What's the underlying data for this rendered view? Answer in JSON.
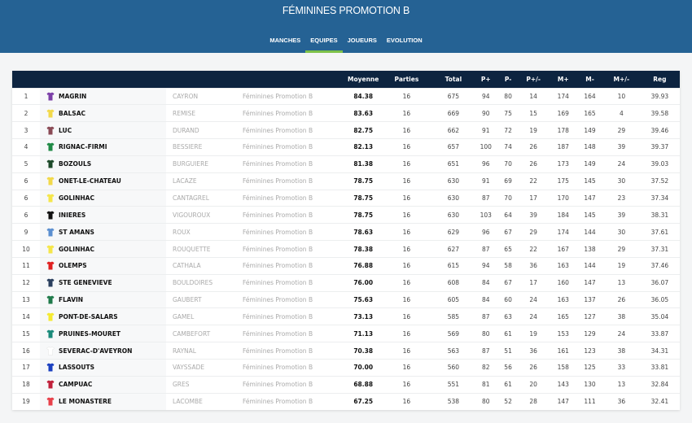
{
  "header": {
    "title": "FÉMININES PROMOTION B"
  },
  "nav": [
    {
      "label": "MANCHES",
      "active": false
    },
    {
      "label": "EQUIPES",
      "active": true
    },
    {
      "label": "JOUEURS",
      "active": false
    },
    {
      "label": "EVOLUTION",
      "active": false
    }
  ],
  "colors": {
    "header_bg": "#256294",
    "table_header_bg": "#0d2440",
    "nav_active_underline": "#7ec24a"
  },
  "table": {
    "columns": [
      "",
      "",
      "",
      "",
      "Moyenne",
      "Parties",
      "Total",
      "P+",
      "P-",
      "P+/-",
      "M+",
      "M-",
      "M+/-",
      "Reg"
    ],
    "rows": [
      {
        "rank": "1",
        "jersey": "#7b3fa8",
        "team": "MAGRIN",
        "player": "CAYRON",
        "division": "Féminines Promotion B",
        "moyenne": "84.38",
        "parties": "16",
        "total": "675",
        "p_plus": "94",
        "p_minus": "80",
        "p_diff": "14",
        "m_plus": "174",
        "m_minus": "164",
        "m_diff": "10",
        "reg": "39.93"
      },
      {
        "rank": "2",
        "jersey": "#f2d94a",
        "team": "BALSAC",
        "player": "REMISE",
        "division": "Féminines Promotion B",
        "moyenne": "83.63",
        "parties": "16",
        "total": "669",
        "p_plus": "90",
        "p_minus": "75",
        "p_diff": "15",
        "m_plus": "169",
        "m_minus": "165",
        "m_diff": "4",
        "reg": "39.58"
      },
      {
        "rank": "3",
        "jersey": "#8a4a55",
        "team": "LUC",
        "player": "DURAND",
        "division": "Féminines Promotion B",
        "moyenne": "82.75",
        "parties": "16",
        "total": "662",
        "p_plus": "91",
        "p_minus": "72",
        "p_diff": "19",
        "m_plus": "178",
        "m_minus": "149",
        "m_diff": "29",
        "reg": "39.46"
      },
      {
        "rank": "4",
        "jersey": "#1f8a45",
        "team": "RIGNAC-FIRMI",
        "player": "BESSIERE",
        "division": "Féminines Promotion B",
        "moyenne": "82.13",
        "parties": "16",
        "total": "657",
        "p_plus": "100",
        "p_minus": "74",
        "p_diff": "26",
        "m_plus": "187",
        "m_minus": "148",
        "m_diff": "39",
        "reg": "39.37"
      },
      {
        "rank": "5",
        "jersey": "#1d4a2a",
        "team": "BOZOULS",
        "player": "BURGUIERE",
        "division": "Féminines Promotion B",
        "moyenne": "81.38",
        "parties": "16",
        "total": "651",
        "p_plus": "96",
        "p_minus": "70",
        "p_diff": "26",
        "m_plus": "173",
        "m_minus": "149",
        "m_diff": "24",
        "reg": "39.03"
      },
      {
        "rank": "6",
        "jersey": "#f2d94a",
        "team": "ONET-LE-CHATEAU",
        "player": "LACAZE",
        "division": "Féminines Promotion B",
        "moyenne": "78.75",
        "parties": "16",
        "total": "630",
        "p_plus": "91",
        "p_minus": "69",
        "p_diff": "22",
        "m_plus": "175",
        "m_minus": "145",
        "m_diff": "30",
        "reg": "37.52"
      },
      {
        "rank": "6",
        "jersey": "#f5e64a",
        "team": "GOLINHAC",
        "player": "CANTAGREL",
        "division": "Féminines Promotion B",
        "moyenne": "78.75",
        "parties": "16",
        "total": "630",
        "p_plus": "87",
        "p_minus": "70",
        "p_diff": "17",
        "m_plus": "170",
        "m_minus": "147",
        "m_diff": "23",
        "reg": "37.34"
      },
      {
        "rank": "6",
        "jersey": "#111111",
        "team": "INIERES",
        "player": "VIGOUROUX",
        "division": "Féminines Promotion B",
        "moyenne": "78.75",
        "parties": "16",
        "total": "630",
        "p_plus": "103",
        "p_minus": "64",
        "p_diff": "39",
        "m_plus": "184",
        "m_minus": "145",
        "m_diff": "39",
        "reg": "38.31"
      },
      {
        "rank": "9",
        "jersey": "#5b8fd0",
        "team": "ST AMANS",
        "player": "ROUX",
        "division": "Féminines Promotion B",
        "moyenne": "78.63",
        "parties": "16",
        "total": "629",
        "p_plus": "96",
        "p_minus": "67",
        "p_diff": "29",
        "m_plus": "174",
        "m_minus": "144",
        "m_diff": "30",
        "reg": "37.61"
      },
      {
        "rank": "10",
        "jersey": "#f5e64a",
        "team": "GOLINHAC",
        "player": "ROUQUETTE",
        "division": "Féminines Promotion B",
        "moyenne": "78.38",
        "parties": "16",
        "total": "627",
        "p_plus": "87",
        "p_minus": "65",
        "p_diff": "22",
        "m_plus": "167",
        "m_minus": "138",
        "m_diff": "29",
        "reg": "37.31"
      },
      {
        "rank": "11",
        "jersey": "#e02020",
        "team": "OLEMPS",
        "player": "CATHALA",
        "division": "Féminines Promotion B",
        "moyenne": "76.88",
        "parties": "16",
        "total": "615",
        "p_plus": "94",
        "p_minus": "58",
        "p_diff": "36",
        "m_plus": "163",
        "m_minus": "144",
        "m_diff": "19",
        "reg": "37.46"
      },
      {
        "rank": "12",
        "jersey": "#2a3f5e",
        "team": "STE GENEVIEVE",
        "player": "BOULDOIRES",
        "division": "Féminines Promotion B",
        "moyenne": "76.00",
        "parties": "16",
        "total": "608",
        "p_plus": "84",
        "p_minus": "67",
        "p_diff": "17",
        "m_plus": "160",
        "m_minus": "147",
        "m_diff": "13",
        "reg": "36.07"
      },
      {
        "rank": "13",
        "jersey": "#1f7a4a",
        "team": "FLAVIN",
        "player": "GAUBERT",
        "division": "Féminines Promotion B",
        "moyenne": "75.63",
        "parties": "16",
        "total": "605",
        "p_plus": "84",
        "p_minus": "60",
        "p_diff": "24",
        "m_plus": "163",
        "m_minus": "137",
        "m_diff": "26",
        "reg": "36.05"
      },
      {
        "rank": "14",
        "jersey": "#f5ea30",
        "team": "PONT-DE-SALARS",
        "player": "GAMEL",
        "division": "Féminines Promotion B",
        "moyenne": "73.13",
        "parties": "16",
        "total": "585",
        "p_plus": "87",
        "p_minus": "63",
        "p_diff": "24",
        "m_plus": "165",
        "m_minus": "127",
        "m_diff": "38",
        "reg": "35.04"
      },
      {
        "rank": "15",
        "jersey": "#1a8a7a",
        "team": "PRUINES-MOURET",
        "player": "CAMBEFORT",
        "division": "Féminines Promotion B",
        "moyenne": "71.13",
        "parties": "16",
        "total": "569",
        "p_plus": "80",
        "p_minus": "61",
        "p_diff": "19",
        "m_plus": "153",
        "m_minus": "129",
        "m_diff": "24",
        "reg": "33.87"
      },
      {
        "rank": "16",
        "jersey": "#ffffff",
        "team": "SEVERAC-D'AVEYRON",
        "player": "RAYNAL",
        "division": "Féminines Promotion B",
        "moyenne": "70.38",
        "parties": "16",
        "total": "563",
        "p_plus": "87",
        "p_minus": "51",
        "p_diff": "36",
        "m_plus": "161",
        "m_minus": "123",
        "m_diff": "38",
        "reg": "34.31"
      },
      {
        "rank": "17",
        "jersey": "#1a3fc0",
        "team": "LASSOUTS",
        "player": "VAYSSADE",
        "division": "Féminines Promotion B",
        "moyenne": "70.00",
        "parties": "16",
        "total": "560",
        "p_plus": "82",
        "p_minus": "56",
        "p_diff": "26",
        "m_plus": "158",
        "m_minus": "125",
        "m_diff": "33",
        "reg": "33.81"
      },
      {
        "rank": "18",
        "jersey": "#c0203a",
        "team": "CAMPUAC",
        "player": "GRES",
        "division": "Féminines Promotion B",
        "moyenne": "68.88",
        "parties": "16",
        "total": "551",
        "p_plus": "81",
        "p_minus": "61",
        "p_diff": "20",
        "m_plus": "143",
        "m_minus": "130",
        "m_diff": "13",
        "reg": "32.84"
      },
      {
        "rank": "19",
        "jersey": "#e8404a",
        "team": "LE MONASTERE",
        "player": "LACOMBE",
        "division": "Féminines Promotion B",
        "moyenne": "67.25",
        "parties": "16",
        "total": "538",
        "p_plus": "80",
        "p_minus": "52",
        "p_diff": "28",
        "m_plus": "147",
        "m_minus": "111",
        "m_diff": "36",
        "reg": "32.41"
      }
    ]
  }
}
